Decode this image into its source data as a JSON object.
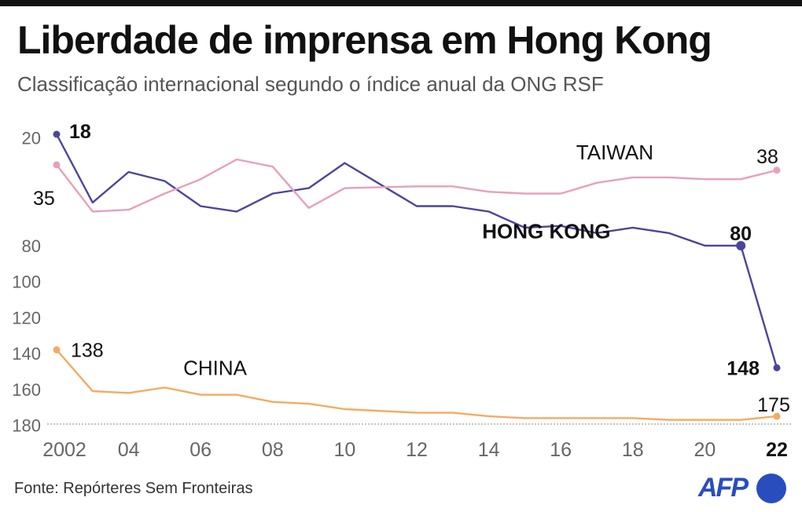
{
  "title": "Liberdade de imprensa em Hong Kong",
  "subtitle": "Classificação internacional segundo o índice anual da ONG RSF",
  "source": "Fonte: Repórteres Sem Fronteiras",
  "logo": "AFP",
  "colors": {
    "hong_kong": "#4b459c",
    "taiwan": "#e7a0bc",
    "china": "#f5aa62",
    "text": "#111111",
    "axis": "#666666"
  },
  "chart_data": {
    "type": "line",
    "title": "Liberdade de imprensa em Hong Kong",
    "subtitle": "Classificação internacional segundo o índice anual da ONG RSF",
    "xlabel": "",
    "ylabel": "",
    "y_inverted": true,
    "ylim": [
      12,
      180
    ],
    "yticks": [
      20,
      80,
      100,
      120,
      140,
      160,
      180
    ],
    "x": [
      2002,
      2003,
      2004,
      2005,
      2006,
      2007,
      2008,
      2009,
      2010,
      2011,
      2012,
      2013,
      2014,
      2015,
      2016,
      2017,
      2018,
      2019,
      2020,
      2021,
      2022
    ],
    "xtick_values": [
      2002,
      2004,
      2006,
      2008,
      2010,
      2012,
      2014,
      2016,
      2018,
      2020,
      2022
    ],
    "xtick_labels": [
      "2002",
      "04",
      "06",
      "08",
      "10",
      "12",
      "14",
      "16",
      "18",
      "20",
      "22"
    ],
    "grid": false,
    "series": [
      {
        "name": "HONG KONG",
        "key": "hong_kong",
        "values": [
          18,
          56,
          39,
          44,
          58,
          61,
          51,
          48,
          34,
          null,
          58,
          58,
          61,
          70,
          69,
          73,
          70,
          73,
          80,
          80,
          148
        ],
        "labels": [
          {
            "x": 2002,
            "text": "18"
          },
          {
            "x": 2021,
            "text": "80"
          },
          {
            "x": 2022,
            "text": "148"
          }
        ]
      },
      {
        "name": "TAIWAN",
        "key": "taiwan",
        "values": [
          35,
          61,
          60,
          51,
          43,
          32,
          36,
          59,
          48,
          null,
          47,
          47,
          50,
          51,
          51,
          45,
          42,
          42,
          43,
          43,
          38
        ],
        "labels": [
          {
            "x": 2002,
            "text": "35"
          },
          {
            "x": 2022,
            "text": "38"
          }
        ]
      },
      {
        "name": "CHINA",
        "key": "china",
        "values": [
          138,
          161,
          162,
          159,
          163,
          163,
          167,
          168,
          171,
          null,
          173,
          173,
          175,
          176,
          176,
          176,
          176,
          177,
          177,
          177,
          175
        ],
        "labels": [
          {
            "x": 2002,
            "text": "138"
          },
          {
            "x": 2022,
            "text": "175"
          }
        ]
      }
    ]
  }
}
